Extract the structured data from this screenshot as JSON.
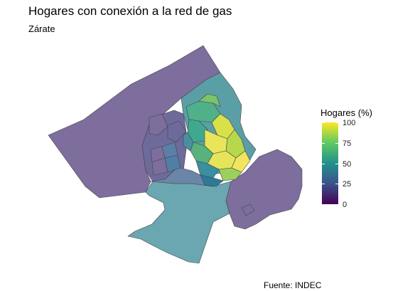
{
  "title": "Hogares con conexión a la red de gas",
  "subtitle": "Zárate",
  "caption": "Fuente: INDEC",
  "legend": {
    "title": "Hogares (%)",
    "ticks": [
      "100",
      "75",
      "50",
      "25",
      "0"
    ],
    "palette": [
      "#440154",
      "#3b528b",
      "#21918c",
      "#5ec962",
      "#fde725"
    ]
  },
  "colors": {
    "low_region": "#7b6c9b",
    "mid_region": "#6aa8b0",
    "border": "#444444",
    "core_high": "#e8e05a"
  }
}
